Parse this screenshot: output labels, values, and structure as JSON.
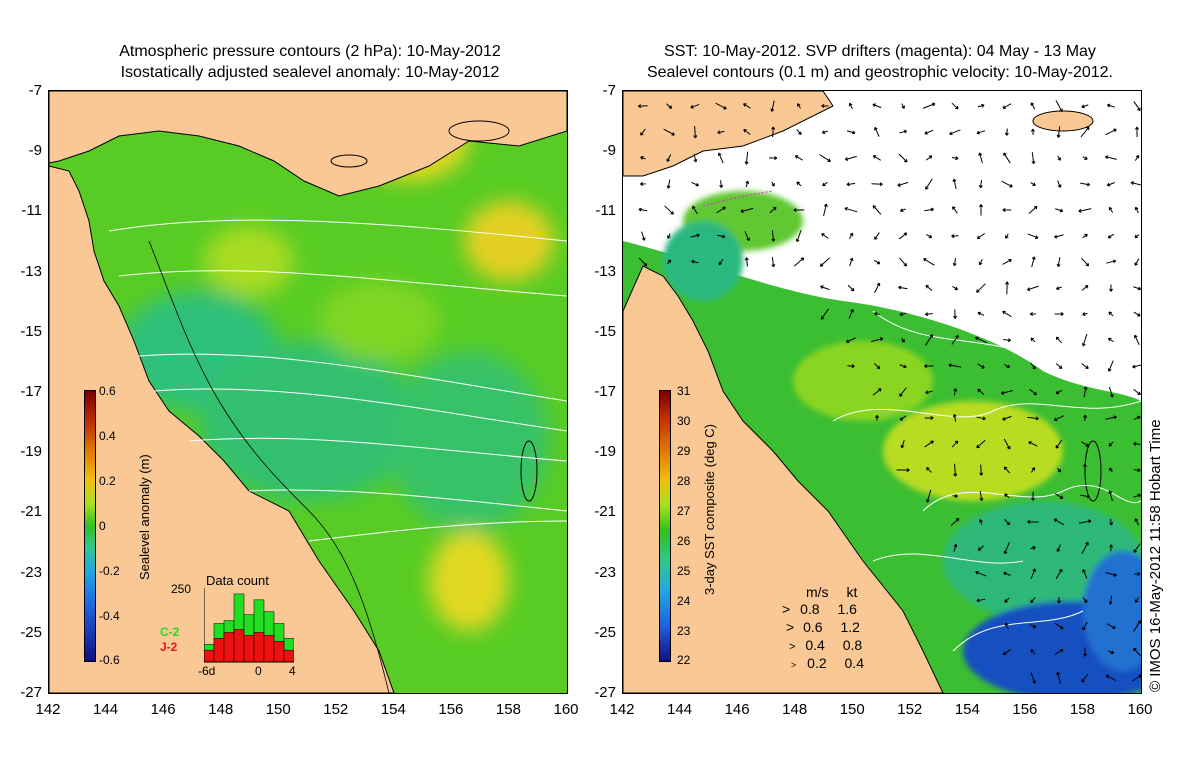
{
  "left_panel": {
    "title_line1": "Atmospheric pressure contours (2 hPa): 10-May-2012",
    "title_line2": "Isostatically adjusted sealevel anomaly: 10-May-2012",
    "colorbar": {
      "label": "Sealevel anomaly (m)",
      "ticks": [
        "0.6",
        "0.4",
        "0.2",
        "0",
        "-0.2",
        "-0.4",
        "-0.6"
      ]
    },
    "inset": {
      "title": "Data count",
      "ymax_label": "250",
      "xticks": [
        "-6d",
        "0",
        "4"
      ],
      "series_labels": [
        "C-2",
        "J-2"
      ],
      "series_colors": [
        "#22dd22",
        "#ee1111"
      ],
      "c2_counts": [
        60,
        130,
        140,
        230,
        160,
        210,
        170,
        130,
        80
      ],
      "j2_counts": [
        40,
        80,
        100,
        110,
        90,
        100,
        90,
        70,
        40
      ]
    }
  },
  "right_panel": {
    "title_line1": "SST: 10-May-2012. SVP drifters (magenta): 04 May - 13 May",
    "title_line2": "Sealevel contours (0.1 m) and geostrophic velocity: 10-May-2012.",
    "colorbar": {
      "label": "3-day SST composite (deg C)",
      "ticks": [
        "31",
        "30",
        "29",
        "28",
        "27",
        "26",
        "25",
        "24",
        "23",
        "22"
      ]
    },
    "velocity_legend": {
      "header_ms": "m/s",
      "header_kt": "kt",
      "rows": [
        {
          "ms": "0.8",
          "kt": "1.6"
        },
        {
          "ms": "0.6",
          "kt": "1.2"
        },
        {
          "ms": "0.4",
          "kt": "0.8"
        },
        {
          "ms": "0.2",
          "kt": "0.4"
        }
      ]
    }
  },
  "axes": {
    "x_ticks": [
      "142",
      "144",
      "146",
      "148",
      "150",
      "152",
      "154",
      "156",
      "158",
      "160"
    ],
    "y_ticks": [
      "-7",
      "-9",
      "-11",
      "-13",
      "-15",
      "-17",
      "-19",
      "-21",
      "-23",
      "-25",
      "-27"
    ]
  },
  "credit": "© IMOS 16-May-2012 11:58 Hobart Time",
  "colors": {
    "land": "#f9c894",
    "sea_green": "#55cc22",
    "sea_yellow": "#e8e020",
    "sea_deep_blue": "#1030a0"
  }
}
